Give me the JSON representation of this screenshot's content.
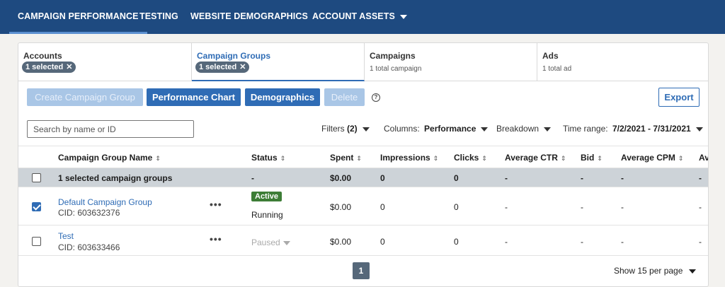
{
  "nav": {
    "tabs": [
      "CAMPAIGN PERFORMANCE",
      "TESTING",
      "WEBSITE DEMOGRAPHICS",
      "ACCOUNT ASSETS"
    ]
  },
  "cards": {
    "accounts": {
      "title": "Accounts",
      "pill": "1 selected"
    },
    "campaign_groups": {
      "title": "Campaign Groups",
      "pill": "1 selected"
    },
    "campaigns": {
      "title": "Campaigns",
      "sub": "1 total campaign"
    },
    "ads": {
      "title": "Ads",
      "sub": "1 total ad"
    }
  },
  "toolbar": {
    "create": "Create Campaign Group",
    "performance_chart": "Performance Chart",
    "demographics": "Demographics",
    "delete": "Delete",
    "help": "?",
    "export": "Export"
  },
  "filters": {
    "search_placeholder": "Search by name or ID",
    "filters_label": "Filters",
    "filters_count": "(2)",
    "columns_label": "Columns:",
    "columns_value": "Performance",
    "breakdown": "Breakdown",
    "time_label": "Time range:",
    "time_value": "7/2/2021 - 7/31/2021"
  },
  "table": {
    "headers": [
      "Campaign Group Name",
      "Status",
      "Spent",
      "Impressions",
      "Clicks",
      "Average CTR",
      "Bid",
      "Average CPM",
      "Av"
    ],
    "summary": {
      "name": "1 selected campaign groups",
      "status": "-",
      "spent": "$0.00",
      "impressions": "0",
      "clicks": "0",
      "ctr": "-",
      "bid": "-",
      "cpm": "-",
      "av": "-"
    },
    "rows": [
      {
        "name": "Default Campaign Group",
        "cid": "CID: 603632376",
        "badge": "Active",
        "status": "Running",
        "spent": "$0.00",
        "impressions": "0",
        "clicks": "0",
        "ctr": "-",
        "bid": "-",
        "cpm": "-",
        "av": "-",
        "checked": true
      },
      {
        "name": "Test",
        "cid": "CID: 603633466",
        "status": "Paused",
        "spent": "$0.00",
        "impressions": "0",
        "clicks": "0",
        "ctr": "-",
        "bid": "-",
        "cpm": "-",
        "av": "-",
        "checked": false
      }
    ]
  },
  "footer": {
    "page": "1",
    "per_page": "Show 15 per page"
  },
  "colors": {
    "nav_bg": "#1e4a80",
    "primary": "#2f6cb5",
    "active_badge": "#3d7d36",
    "summary_bg": "#cdd3d8"
  }
}
